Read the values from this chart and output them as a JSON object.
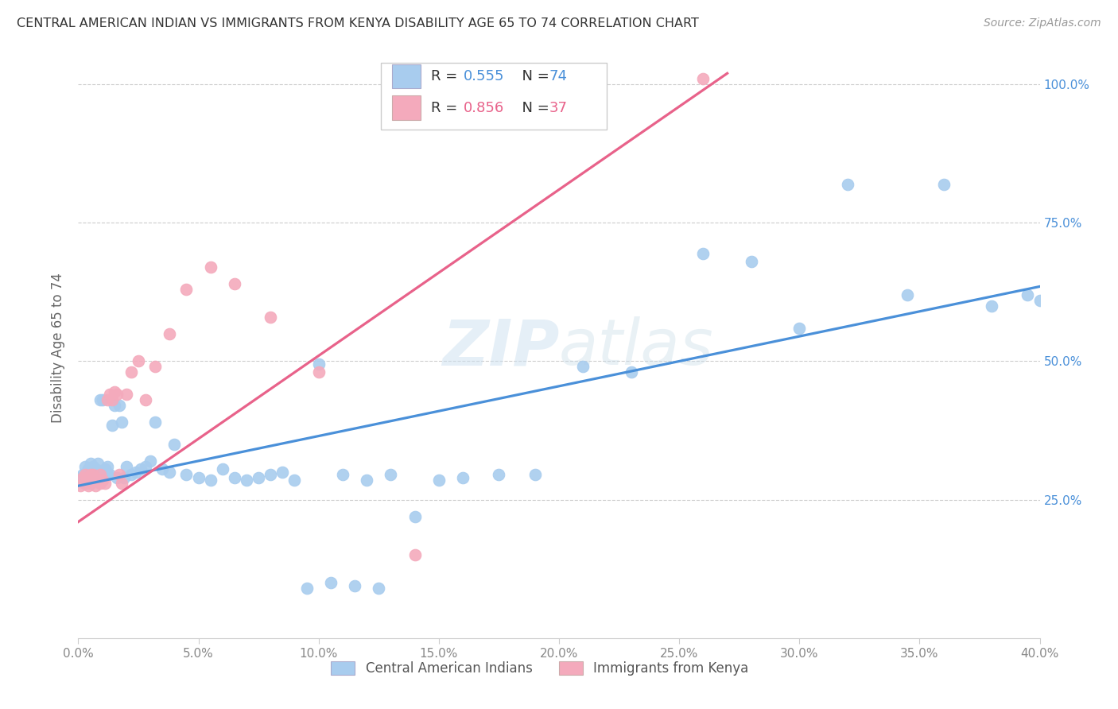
{
  "title": "CENTRAL AMERICAN INDIAN VS IMMIGRANTS FROM KENYA DISABILITY AGE 65 TO 74 CORRELATION CHART",
  "source": "Source: ZipAtlas.com",
  "ylabel": "Disability Age 65 to 74",
  "legend_blue_R": "0.555",
  "legend_blue_N": "74",
  "legend_pink_R": "0.856",
  "legend_pink_N": "37",
  "legend_label_blue": "Central American Indians",
  "legend_label_pink": "Immigrants from Kenya",
  "watermark": "ZIPatlas",
  "blue_color": "#A8CCEE",
  "pink_color": "#F4AABC",
  "blue_line_color": "#4A90D9",
  "pink_line_color": "#E8628A",
  "R_label_color": "#4A90D9",
  "N_label_color": "#4A90D9",
  "xmin": 0.0,
  "xmax": 0.4,
  "ymin": 0.0,
  "ymax": 1.05,
  "blue_x": [
    0.001,
    0.002,
    0.002,
    0.003,
    0.003,
    0.004,
    0.004,
    0.005,
    0.005,
    0.006,
    0.006,
    0.007,
    0.007,
    0.008,
    0.008,
    0.009,
    0.009,
    0.01,
    0.01,
    0.011,
    0.011,
    0.012,
    0.012,
    0.013,
    0.014,
    0.015,
    0.016,
    0.017,
    0.018,
    0.019,
    0.02,
    0.022,
    0.024,
    0.026,
    0.028,
    0.03,
    0.032,
    0.035,
    0.038,
    0.04,
    0.045,
    0.05,
    0.055,
    0.06,
    0.065,
    0.07,
    0.075,
    0.08,
    0.085,
    0.09,
    0.1,
    0.11,
    0.12,
    0.13,
    0.14,
    0.15,
    0.16,
    0.175,
    0.19,
    0.21,
    0.23,
    0.26,
    0.28,
    0.3,
    0.32,
    0.345,
    0.36,
    0.38,
    0.395,
    0.4,
    0.095,
    0.105,
    0.115,
    0.125
  ],
  "blue_y": [
    0.29,
    0.295,
    0.285,
    0.31,
    0.28,
    0.305,
    0.295,
    0.315,
    0.3,
    0.295,
    0.31,
    0.305,
    0.295,
    0.315,
    0.3,
    0.43,
    0.295,
    0.43,
    0.3,
    0.295,
    0.305,
    0.295,
    0.31,
    0.295,
    0.385,
    0.42,
    0.29,
    0.42,
    0.39,
    0.29,
    0.31,
    0.295,
    0.3,
    0.305,
    0.31,
    0.32,
    0.39,
    0.305,
    0.3,
    0.35,
    0.295,
    0.29,
    0.285,
    0.305,
    0.29,
    0.285,
    0.29,
    0.295,
    0.3,
    0.285,
    0.495,
    0.295,
    0.285,
    0.295,
    0.22,
    0.285,
    0.29,
    0.295,
    0.295,
    0.49,
    0.48,
    0.695,
    0.68,
    0.56,
    0.82,
    0.62,
    0.82,
    0.6,
    0.62,
    0.61,
    0.09,
    0.1,
    0.095,
    0.09
  ],
  "pink_x": [
    0.001,
    0.002,
    0.003,
    0.003,
    0.004,
    0.004,
    0.005,
    0.005,
    0.006,
    0.006,
    0.007,
    0.007,
    0.008,
    0.009,
    0.009,
    0.01,
    0.011,
    0.012,
    0.013,
    0.014,
    0.015,
    0.016,
    0.017,
    0.018,
    0.02,
    0.022,
    0.025,
    0.028,
    0.032,
    0.038,
    0.045,
    0.055,
    0.065,
    0.08,
    0.1,
    0.14,
    0.26
  ],
  "pink_y": [
    0.275,
    0.29,
    0.28,
    0.295,
    0.285,
    0.275,
    0.28,
    0.295,
    0.285,
    0.295,
    0.29,
    0.275,
    0.285,
    0.28,
    0.295,
    0.285,
    0.28,
    0.43,
    0.44,
    0.43,
    0.445,
    0.44,
    0.295,
    0.28,
    0.44,
    0.48,
    0.5,
    0.43,
    0.49,
    0.55,
    0.63,
    0.67,
    0.64,
    0.58,
    0.48,
    0.15,
    1.01
  ],
  "blue_line_x0": 0.0,
  "blue_line_x1": 0.4,
  "blue_line_y0": 0.275,
  "blue_line_y1": 0.635,
  "pink_line_x0": 0.0,
  "pink_line_x1": 0.27,
  "pink_line_y0": 0.21,
  "pink_line_y1": 1.02
}
